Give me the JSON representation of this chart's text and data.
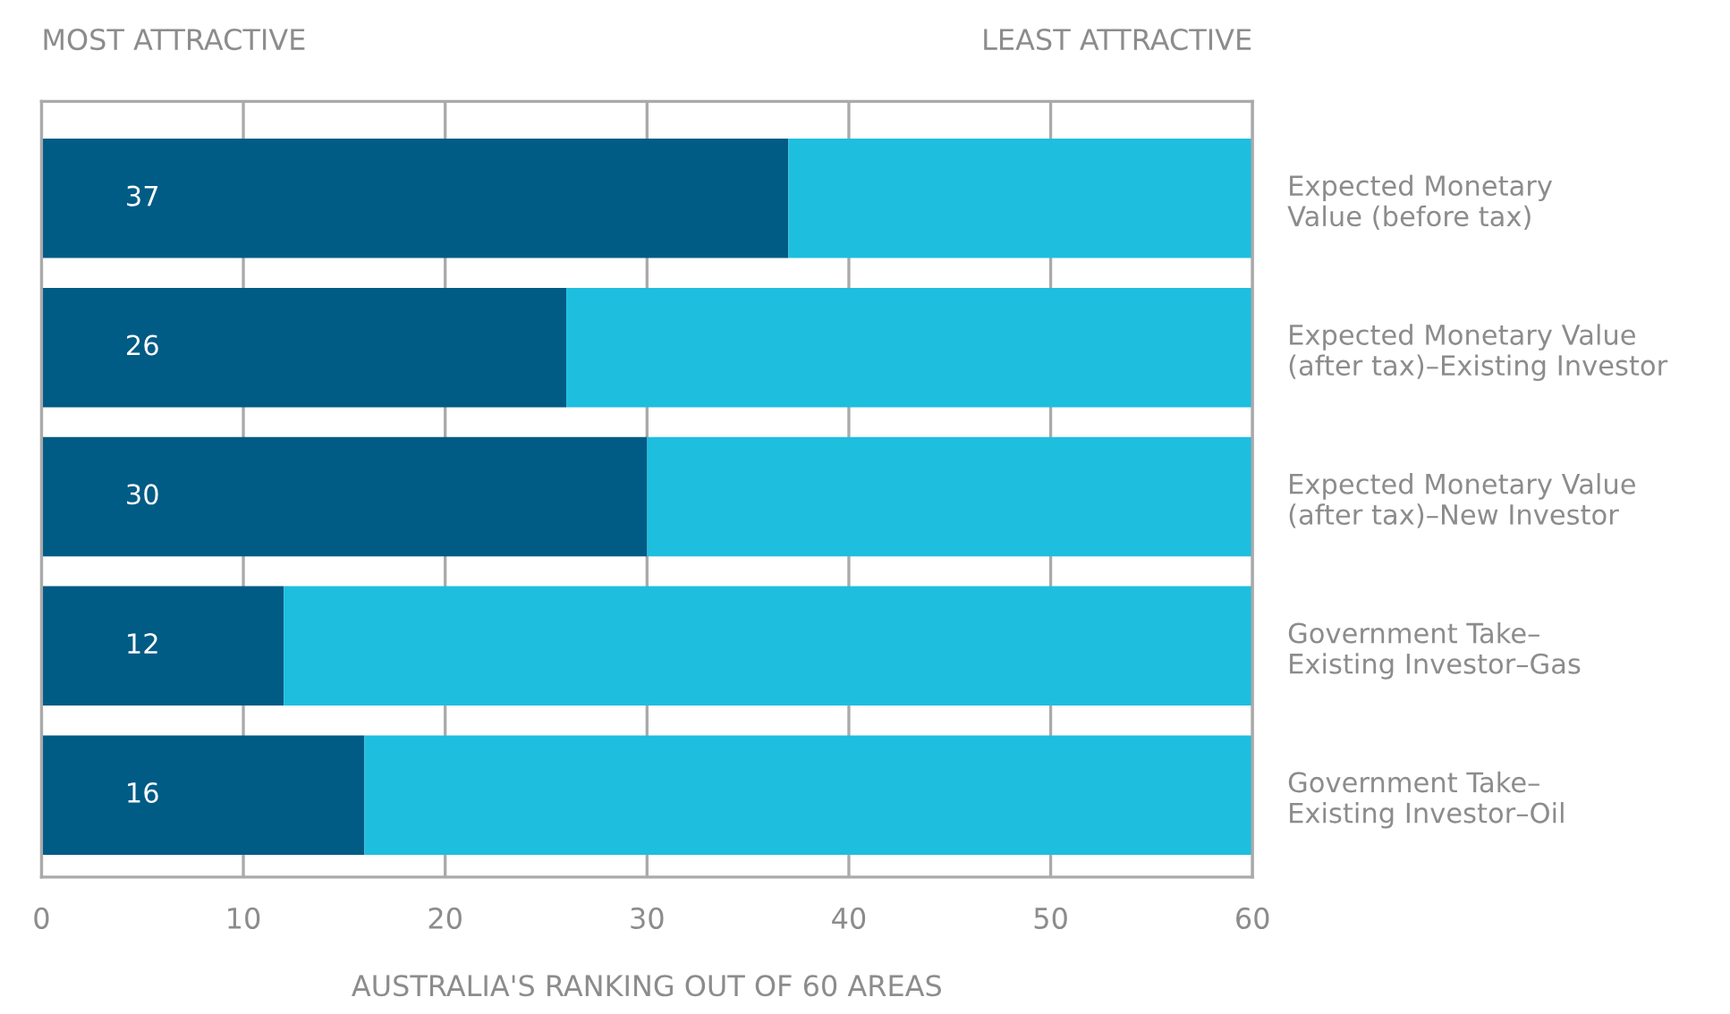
{
  "chart_data": {
    "type": "bar",
    "orientation": "horizontal",
    "stacked": true,
    "categories": [
      "Expected Monetary\nValue (before tax)",
      "Expected Monetary Value\n(after tax)–Existing Investor",
      "Expected Monetary Value\n(after tax)–New Investor",
      "Government Take–\nExisting Investor–Gas",
      "Government Take–\nExisting Investor–Oil"
    ],
    "series": [
      {
        "color": "#005b85",
        "values": [
          37,
          26,
          30,
          12,
          16
        ],
        "value_labels": [
          "37",
          "26",
          "30",
          "12",
          "16"
        ]
      },
      {
        "color": "#1ebedf",
        "values": [
          23,
          34,
          30,
          48,
          44
        ]
      }
    ],
    "xlim": [
      0,
      60
    ],
    "xticks": [
      0,
      10,
      20,
      30,
      40,
      50,
      60
    ],
    "grid": "x",
    "legend": false,
    "xlabel": "AUSTRALIA'S RANKING OUT OF 60 AREAS",
    "annotations": [
      "MOST ATTRACTIVE",
      "LEAST ATTRACTIVE"
    ]
  }
}
